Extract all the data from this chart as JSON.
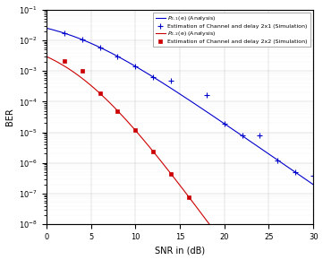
{
  "title": "",
  "xlabel": "SNR in (dB)",
  "ylabel": "BER",
  "xlim": [
    0,
    30
  ],
  "ylim": [
    1e-08,
    0.1
  ],
  "blue_line_label": "$P_{2,1}$(e) (Analysis)",
  "blue_marker_label": "+ Estimation of Channel and delay 2x1 (Simulation)",
  "red_line_label": "$P_{2,2}$(e) (Analysis)",
  "red_marker_label": "* Estimation of Channel and delay 2x2 (Simulation)",
  "blue_color": "#0000cc",
  "red_color": "#cc0000",
  "background_color": "#ffffff",
  "snr_sim_blue": [
    2,
    4,
    6,
    8,
    10,
    12,
    14,
    18,
    20,
    22,
    24,
    26,
    28,
    30
  ],
  "ber_sim_blue_offsets": [
    1.0,
    1.0,
    1.0,
    1.0,
    1.0,
    1.0,
    1.8,
    3.5,
    1.0,
    1.0,
    2.5,
    1.0,
    1.0,
    2.0
  ],
  "snr_sim_red": [
    2,
    4,
    6,
    8,
    10,
    12,
    14,
    16
  ],
  "ber_sim_red_offsets": [
    1.5,
    1.8,
    1.0,
    1.0,
    1.0,
    1.0,
    1.0,
    1.0
  ]
}
